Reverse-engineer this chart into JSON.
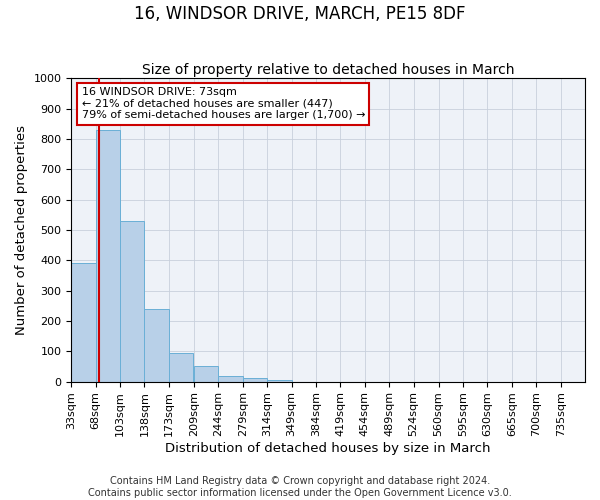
{
  "title": "16, WINDSOR DRIVE, MARCH, PE15 8DF",
  "subtitle": "Size of property relative to detached houses in March",
  "xlabel": "Distribution of detached houses by size in March",
  "ylabel": "Number of detached properties",
  "bar_heights": [
    390,
    830,
    530,
    240,
    95,
    50,
    20,
    12,
    5,
    0,
    0,
    0,
    0,
    0,
    0,
    0,
    0,
    0,
    0,
    0
  ],
  "bin_labels": [
    "33sqm",
    "68sqm",
    "103sqm",
    "138sqm",
    "173sqm",
    "209sqm",
    "244sqm",
    "279sqm",
    "314sqm",
    "349sqm",
    "384sqm",
    "419sqm",
    "454sqm",
    "489sqm",
    "524sqm",
    "560sqm",
    "595sqm",
    "630sqm",
    "665sqm",
    "700sqm",
    "735sqm"
  ],
  "bin_edges": [
    33,
    68,
    103,
    138,
    173,
    209,
    244,
    279,
    314,
    349,
    384,
    419,
    454,
    489,
    524,
    560,
    595,
    630,
    665,
    700,
    735
  ],
  "bar_color": "#b8d0e8",
  "bar_edge_color": "#6aafd6",
  "vline_x": 73,
  "vline_color": "#cc0000",
  "ylim": [
    0,
    1000
  ],
  "yticks": [
    0,
    100,
    200,
    300,
    400,
    500,
    600,
    700,
    800,
    900,
    1000
  ],
  "annotation_title": "16 WINDSOR DRIVE: 73sqm",
  "annotation_line1": "← 21% of detached houses are smaller (447)",
  "annotation_line2": "79% of semi-detached houses are larger (1,700) →",
  "annotation_box_color": "#ffffff",
  "annotation_box_edge_color": "#cc0000",
  "footer1": "Contains HM Land Registry data © Crown copyright and database right 2024.",
  "footer2": "Contains public sector information licensed under the Open Government Licence v3.0.",
  "background_color": "#eef2f8",
  "grid_color": "#c8d0dc",
  "title_fontsize": 12,
  "subtitle_fontsize": 10,
  "axis_label_fontsize": 9.5,
  "tick_fontsize": 8,
  "annot_fontsize": 8,
  "footer_fontsize": 7
}
